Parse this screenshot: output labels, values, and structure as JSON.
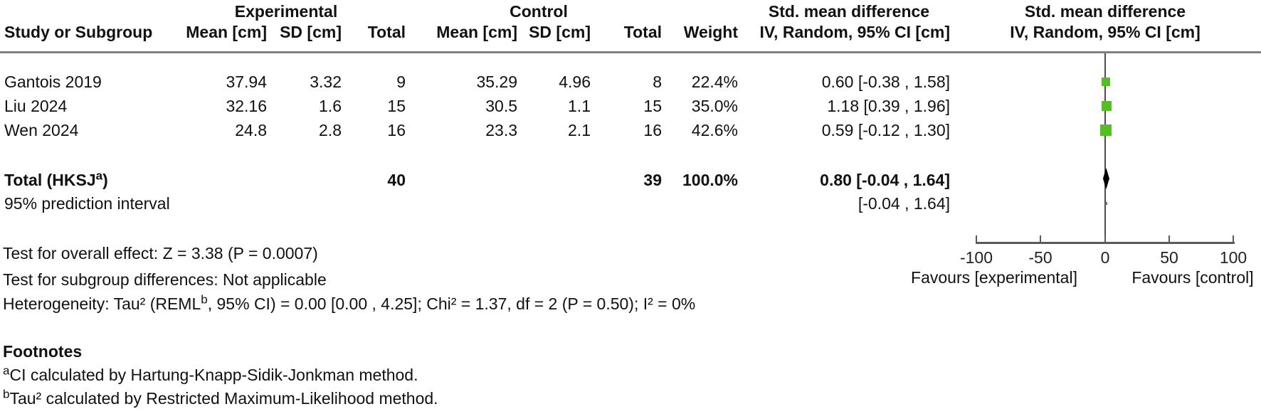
{
  "chart_data": {
    "type": "scatter",
    "subtype": "forest-plot",
    "effect_measure": "Std. mean difference, IV, Random, 95% CI [cm]",
    "x_axis": {
      "range": [
        -100,
        100
      ],
      "ticks": [
        -100,
        -50,
        0,
        50,
        100
      ],
      "label_left": "Favours [experimental]",
      "label_right": "Favours [control]"
    },
    "studies": [
      {
        "name": "Gantois 2019",
        "exp_mean": 37.94,
        "exp_sd": 3.32,
        "exp_total": 9,
        "ctrl_mean": 35.29,
        "ctrl_sd": 4.96,
        "ctrl_total": 8,
        "weight_pct": 22.4,
        "smd": 0.6,
        "ci_low": -0.38,
        "ci_high": 1.58
      },
      {
        "name": "Liu 2024",
        "exp_mean": 32.16,
        "exp_sd": 1.6,
        "exp_total": 15,
        "ctrl_mean": 30.5,
        "ctrl_sd": 1.1,
        "ctrl_total": 15,
        "weight_pct": 35.0,
        "smd": 1.18,
        "ci_low": 0.39,
        "ci_high": 1.96
      },
      {
        "name": "Wen 2024",
        "exp_mean": 24.8,
        "exp_sd": 2.8,
        "exp_total": 16,
        "ctrl_mean": 23.3,
        "ctrl_sd": 2.1,
        "ctrl_total": 16,
        "weight_pct": 42.6,
        "smd": 0.59,
        "ci_low": -0.12,
        "ci_high": 1.3
      }
    ],
    "total": {
      "label": "Total (HKSJ)",
      "exp_total": 40,
      "ctrl_total": 39,
      "weight_pct": 100.0,
      "smd": 0.8,
      "ci_low": -0.04,
      "ci_high": 1.64
    },
    "prediction_interval": {
      "label": "95% prediction interval",
      "ci_low": -0.04,
      "ci_high": 1.64
    }
  },
  "table": {
    "group_headers": {
      "experimental": "Experimental",
      "control": "Control",
      "smd_text": "Std. mean difference",
      "smd_plot": "Std. mean difference"
    },
    "col_headers": {
      "study": "Study or Subgroup",
      "mean_exp": "Mean [cm]",
      "sd_exp": "SD [cm]",
      "total_exp": "Total",
      "mean_ctrl": "Mean [cm]",
      "sd_ctrl": "SD [cm]",
      "total_ctrl": "Total",
      "weight": "Weight",
      "ci_text": "IV, Random, 95% CI [cm]",
      "ci_plot": "IV, Random, 95% CI [cm]"
    },
    "rows": [
      {
        "study": "Gantois 2019",
        "mean_exp": "37.94",
        "sd_exp": "3.32",
        "total_exp": "9",
        "mean_ctrl": "35.29",
        "sd_ctrl": "4.96",
        "total_ctrl": "8",
        "weight": "22.4%",
        "ci": "0.60 [-0.38 , 1.58]"
      },
      {
        "study": "Liu 2024",
        "mean_exp": "32.16",
        "sd_exp": "1.6",
        "total_exp": "15",
        "mean_ctrl": "30.5",
        "sd_ctrl": "1.1",
        "total_ctrl": "15",
        "weight": "35.0%",
        "ci": "1.18 [0.39 , 1.96]"
      },
      {
        "study": "Wen 2024",
        "mean_exp": "24.8",
        "sd_exp": "2.8",
        "total_exp": "16",
        "mean_ctrl": "23.3",
        "sd_ctrl": "2.1",
        "total_ctrl": "16",
        "weight": "42.6%",
        "ci": "0.59 [-0.12 , 1.30]"
      }
    ],
    "total_row": {
      "label_main": "Total (HKSJ",
      "label_sup": "a",
      "label_close": ")",
      "total_exp": "40",
      "total_ctrl": "39",
      "weight": "100.0%",
      "ci": "0.80 [-0.04 , 1.64]"
    },
    "prediction_row": {
      "label": "95% prediction interval",
      "ci": "[-0.04 , 1.64]"
    }
  },
  "stats": {
    "overall_effect": "Test for overall effect: Z = 3.38 (P = 0.0007)",
    "subgroup_differences": "Test for subgroup differences: Not applicable",
    "heterogeneity_pre": "Heterogeneity: Tau² (REML",
    "heterogeneity_sup": "b",
    "heterogeneity_post": ", 95% CI) = 0.00 [0.00 , 4.25]; Chi² = 1.37, df = 2 (P = 0.50); I² = 0%"
  },
  "axis": {
    "tick_labels": [
      "-100",
      "-50",
      "0",
      "50",
      "100"
    ],
    "favours_left": "Favours [experimental]",
    "favours_right": "Favours [control]"
  },
  "footnotes": {
    "title": "Footnotes",
    "a_sup": "a",
    "a_text": "CI calculated by Hartung-Knapp-Sidik-Jonkman method.",
    "b_sup": "b",
    "b_text": "Tau² calculated by Restricted Maximum-Likelihood method."
  },
  "colors": {
    "study_marker_green": "#53bf23",
    "diamond_black": "#000000",
    "prediction_purple": "#954f9b",
    "rule_gray": "#808080",
    "axis_gray": "#5a5a5a"
  }
}
